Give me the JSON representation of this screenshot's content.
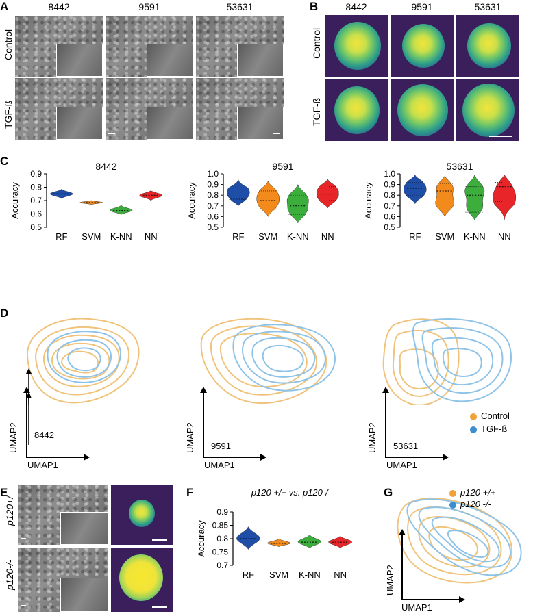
{
  "panels": {
    "A": {
      "label": "A",
      "columns": [
        "8442",
        "9591",
        "53631"
      ],
      "rows": [
        "Control",
        "TGF-ß"
      ]
    },
    "B": {
      "label": "B",
      "columns": [
        "8442",
        "9591",
        "53631"
      ],
      "rows": [
        "Control",
        "TGF-ß"
      ]
    },
    "C": {
      "label": "C"
    },
    "D": {
      "label": "D",
      "axis_x": "UMAP1",
      "axis_y": "UMAP2",
      "plots": [
        "8442",
        "9591",
        "53631"
      ],
      "legend": [
        {
          "name": "Control",
          "color": "#f0a236"
        },
        {
          "name": "TGF-ß",
          "color": "#3b8fd0"
        }
      ]
    },
    "E": {
      "label": "E",
      "rows": [
        "p120+/+",
        "p120-/-"
      ]
    },
    "F": {
      "label": "F",
      "title": "p120 +/+ vs. p120-/-"
    },
    "G": {
      "label": "G",
      "axis_x": "UMAP1",
      "axis_y": "UMAP2",
      "legend": [
        {
          "name": "p120 +/+",
          "color": "#f0a236"
        },
        {
          "name": "p120 -/-",
          "color": "#3b8fd0"
        }
      ]
    }
  },
  "colors": {
    "RF": "#1f4ea8",
    "SVM": "#f28a1c",
    "K-NN": "#3cae3c",
    "NN": "#e8262a",
    "control": "#f0c27a",
    "tgf": "#8ec3e8"
  },
  "chart_data": [
    {
      "type": "violin",
      "title": "8442",
      "ylabel": "Accuracy",
      "categories": [
        "RF",
        "SVM",
        "K-NN",
        "NN"
      ],
      "yticks": [
        "0.5",
        "0.6",
        "0.7",
        "0.8",
        "0.9"
      ],
      "ylim": [
        0.5,
        0.9
      ],
      "values": [
        {
          "name": "RF",
          "median": 0.75,
          "min": 0.715,
          "max": 0.785,
          "modes": [
            0.75
          ]
        },
        {
          "name": "SVM",
          "median": 0.685,
          "min": 0.67,
          "max": 0.7,
          "modes": [
            0.685
          ]
        },
        {
          "name": "K-NN",
          "median": 0.625,
          "min": 0.595,
          "max": 0.665,
          "modes": [
            0.625
          ]
        },
        {
          "name": "NN",
          "median": 0.74,
          "min": 0.7,
          "max": 0.775,
          "modes": [
            0.74
          ]
        }
      ]
    },
    {
      "type": "violin",
      "title": "9591",
      "ylabel": "Accuracy",
      "categories": [
        "RF",
        "SVM",
        "K-NN",
        "NN"
      ],
      "yticks": [
        "0.5",
        "0.6",
        "0.7",
        "0.8",
        "0.9",
        "1.0"
      ],
      "ylim": [
        0.5,
        1.0
      ],
      "values": [
        {
          "name": "RF",
          "median": 0.77,
          "min": 0.7,
          "max": 0.95,
          "modes": [
            0.85,
            0.76
          ]
        },
        {
          "name": "SVM",
          "median": 0.75,
          "min": 0.6,
          "max": 0.93,
          "modes": [
            0.84,
            0.69
          ]
        },
        {
          "name": "K-NN",
          "median": 0.7,
          "min": 0.54,
          "max": 0.9,
          "modes": [
            0.8,
            0.62
          ]
        },
        {
          "name": "NN",
          "median": 0.81,
          "min": 0.68,
          "max": 0.95,
          "modes": [
            0.88,
            0.75
          ]
        }
      ]
    },
    {
      "type": "violin",
      "title": "53631",
      "ylabel": "Accuracy",
      "categories": [
        "RF",
        "SVM",
        "K-NN",
        "NN"
      ],
      "yticks": [
        "0.5",
        "0.6",
        "0.7",
        "0.8",
        "0.9",
        "1.0"
      ],
      "ylim": [
        0.5,
        1.0
      ],
      "values": [
        {
          "name": "RF",
          "median": 0.865,
          "min": 0.72,
          "max": 0.99,
          "modes": [
            0.92,
            0.8
          ]
        },
        {
          "name": "SVM",
          "median": 0.84,
          "min": 0.6,
          "max": 0.98,
          "modes": [
            0.91,
            0.69
          ]
        },
        {
          "name": "K-NN",
          "median": 0.8,
          "min": 0.57,
          "max": 0.99,
          "modes": [
            0.88,
            0.64
          ]
        },
        {
          "name": "NN",
          "median": 0.88,
          "min": 0.57,
          "max": 0.99,
          "modes": [
            0.92,
            0.74
          ]
        }
      ]
    },
    {
      "type": "violin",
      "title": "",
      "ylabel": "Accuracy",
      "categories": [
        "RF",
        "SVM",
        "K-NN",
        "NN"
      ],
      "yticks": [
        "0.7",
        "0.75",
        "0.8",
        "0.85",
        "0.9"
      ],
      "ylim": [
        0.7,
        0.9
      ],
      "values": [
        {
          "name": "RF",
          "median": 0.8,
          "min": 0.76,
          "max": 0.845,
          "modes": [
            0.8
          ]
        },
        {
          "name": "SVM",
          "median": 0.782,
          "min": 0.77,
          "max": 0.8,
          "modes": [
            0.782
          ]
        },
        {
          "name": "K-NN",
          "median": 0.787,
          "min": 0.765,
          "max": 0.815,
          "modes": [
            0.787
          ]
        },
        {
          "name": "NN",
          "median": 0.787,
          "min": 0.765,
          "max": 0.81,
          "modes": [
            0.787
          ]
        }
      ]
    }
  ]
}
